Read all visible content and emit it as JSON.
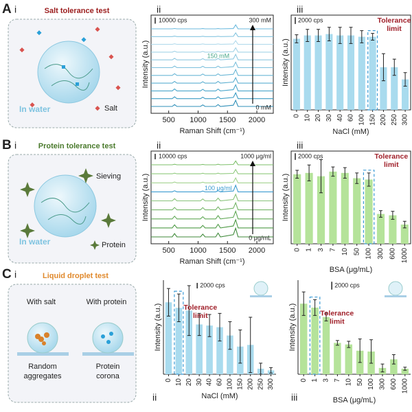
{
  "panels": [
    {
      "letter": "A",
      "numerals": [
        "i",
        "ii",
        "iii"
      ]
    },
    {
      "letter": "B",
      "numerals": [
        "i",
        "ii",
        "iii"
      ]
    },
    {
      "letter": "C",
      "numerals": [
        "i",
        "ii",
        "iii"
      ]
    }
  ],
  "illustrations": {
    "salt": {
      "title": "Salt tolerance test",
      "medium": "In water",
      "legend": "Salt"
    },
    "protein": {
      "title": "Protein tolerance test",
      "medium": "In water",
      "sieving": "Sieving",
      "legend": "Protein"
    },
    "droplet": {
      "title": "Liquid droplet test",
      "left": "With salt",
      "right": "With protein",
      "left_caption": [
        "Random",
        "aggregates"
      ],
      "right_caption": [
        "Protein",
        "corona"
      ]
    }
  },
  "chart_data": [
    {
      "type": "spectra",
      "xlabel": "Raman Shift (cm⁻¹)",
      "ylabel": "Intensity (a.u.)",
      "xlim": [
        200,
        2280
      ],
      "xticks": [
        500,
        1000,
        1500,
        2000
      ],
      "ylim": [
        0,
        160000
      ],
      "scale_bar": {
        "value": 10000,
        "label": "10000 cps"
      },
      "annotations": {
        "top": "300 mM",
        "middle": "150 mM",
        "bottom": "0 mM"
      },
      "annotation_color": "#4aa88a",
      "x": [
        200,
        560,
        600,
        640,
        1040,
        1080,
        1120,
        1300,
        1340,
        1380,
        1600,
        1640,
        1680,
        2280
      ],
      "series": [
        {
          "color": "#2f8fb8",
          "values": [
            0,
            0,
            3000,
            0,
            0,
            2500,
            0,
            0,
            3000,
            0,
            2000,
            10000,
            0,
            0
          ]
        },
        {
          "color": "#3b9cc4",
          "values": [
            0,
            0,
            3000,
            0,
            0,
            2500,
            0,
            0,
            3000,
            0,
            2000,
            9500,
            0,
            0
          ]
        },
        {
          "color": "#4aa6cb",
          "values": [
            0,
            0,
            3200,
            0,
            0,
            2600,
            0,
            0,
            3000,
            0,
            2000,
            10000,
            0,
            0
          ]
        },
        {
          "color": "#5aaed0",
          "values": [
            0,
            0,
            2800,
            0,
            0,
            2400,
            0,
            0,
            2800,
            0,
            1800,
            9000,
            0,
            0
          ]
        },
        {
          "color": "#6bb7d6",
          "values": [
            0,
            0,
            2800,
            0,
            0,
            2200,
            0,
            0,
            2600,
            0,
            1800,
            9500,
            0,
            0
          ]
        },
        {
          "color": "#7cc0dc",
          "values": [
            0,
            0,
            2600,
            0,
            0,
            2200,
            0,
            0,
            2500,
            0,
            1600,
            9000,
            0,
            0
          ]
        },
        {
          "color": "#8fc9e1",
          "values": [
            0,
            0,
            2600,
            0,
            0,
            2000,
            0,
            0,
            2400,
            0,
            1600,
            9000,
            0,
            0
          ]
        },
        {
          "color": "#a3d3e7",
          "values": [
            0,
            0,
            1500,
            0,
            0,
            1200,
            0,
            0,
            1200,
            0,
            800,
            7000,
            0,
            0
          ]
        },
        {
          "color": "#b3dbec",
          "values": [
            0,
            0,
            1000,
            0,
            0,
            800,
            0,
            0,
            800,
            0,
            600,
            6000,
            0,
            0
          ]
        },
        {
          "color": "#86c6e0",
          "values": [
            0,
            0,
            800,
            0,
            0,
            600,
            0,
            0,
            600,
            0,
            400,
            6000,
            0,
            0
          ]
        },
        {
          "color": "#6bbade",
          "values": [
            0,
            0,
            600,
            0,
            0,
            500,
            0,
            0,
            500,
            0,
            400,
            6500,
            0,
            0
          ]
        }
      ]
    },
    {
      "type": "bar",
      "xlabel": "NaCl (mM)",
      "ylabel": "Intensity (a.u.)",
      "categories": [
        "0",
        "10",
        "20",
        "30",
        "40",
        "60",
        "100",
        "150",
        "200",
        "250",
        "300"
      ],
      "values": [
        21000,
        22000,
        22000,
        22400,
        22000,
        22000,
        21600,
        21600,
        12600,
        12600,
        9000
      ],
      "errors": [
        1200,
        1800,
        1800,
        2000,
        2400,
        2400,
        1800,
        1000,
        4000,
        2400,
        2000
      ],
      "color": "#a9dbee",
      "ylim": [
        0,
        28000
      ],
      "scale_bar": {
        "value": 2000,
        "label": "2000 cps"
      },
      "highlight": "150",
      "highlight_label": [
        "Tolerance",
        "limit"
      ],
      "frame": "box"
    },
    {
      "type": "spectra",
      "xlabel": "Raman Shift (cm⁻¹)",
      "ylabel": "Intensity (a.u.)",
      "xlim": [
        200,
        2280
      ],
      "xticks": [
        500,
        1000,
        1500,
        2000
      ],
      "ylim": [
        0,
        170000
      ],
      "scale_bar": {
        "value": 10000,
        "label": "10000 cps"
      },
      "annotations": {
        "top": "1000 μg/ml",
        "middle": "100 μg/ml",
        "bottom": "0 μg/mL"
      },
      "annotation_color": "#3a9bd0",
      "x": [
        200,
        560,
        600,
        640,
        1040,
        1080,
        1120,
        1300,
        1340,
        1380,
        1600,
        1640,
        1680,
        2280
      ],
      "series": [
        {
          "color": "#3f8a3a",
          "values": [
            0,
            0,
            6000,
            0,
            0,
            5000,
            0,
            0,
            7000,
            0,
            4000,
            16000,
            0,
            0
          ]
        },
        {
          "color": "#4e9a45",
          "values": [
            0,
            0,
            5500,
            0,
            0,
            4500,
            0,
            0,
            6500,
            0,
            3500,
            15000,
            0,
            0
          ]
        },
        {
          "color": "#60a855",
          "values": [
            0,
            0,
            5000,
            0,
            0,
            4000,
            0,
            0,
            6000,
            0,
            3000,
            14000,
            0,
            0
          ]
        },
        {
          "color": "#74b567",
          "values": [
            0,
            0,
            4500,
            0,
            0,
            4000,
            0,
            0,
            5500,
            0,
            3000,
            13000,
            0,
            0
          ]
        },
        {
          "color": "#88c27a",
          "values": [
            0,
            0,
            4000,
            0,
            0,
            3500,
            0,
            0,
            5000,
            0,
            2500,
            12000,
            0,
            0
          ]
        },
        {
          "color": "#3a9bd0",
          "values": [
            0,
            0,
            2000,
            0,
            0,
            1500,
            0,
            0,
            2000,
            0,
            1500,
            12000,
            0,
            0
          ]
        },
        {
          "color": "#a3d38f",
          "values": [
            0,
            0,
            1500,
            0,
            0,
            1200,
            0,
            0,
            1500,
            0,
            1000,
            9000,
            0,
            0
          ]
        },
        {
          "color": "#8fc97c",
          "values": [
            0,
            0,
            1200,
            0,
            0,
            1000,
            0,
            0,
            1200,
            0,
            800,
            8000,
            0,
            0
          ]
        },
        {
          "color": "#7dbf6a",
          "values": [
            0,
            0,
            1000,
            0,
            0,
            800,
            0,
            0,
            1000,
            0,
            600,
            7000,
            0,
            0
          ]
        }
      ]
    },
    {
      "type": "bar",
      "xlabel": "BSA (μg/mL)",
      "ylabel": "Intensity (a.u.)",
      "categories": [
        "0",
        "1",
        "3",
        "7",
        "10",
        "50",
        "100",
        "300",
        "600",
        "1000"
      ],
      "values": [
        21000,
        21400,
        20400,
        21800,
        21400,
        19800,
        19400,
        9000,
        8600,
        5800
      ],
      "errors": [
        1200,
        2400,
        5000,
        1400,
        1600,
        1600,
        2000,
        1000,
        1200,
        1000
      ],
      "color": "#b5e39a",
      "ylim": [
        0,
        28000
      ],
      "scale_bar": {
        "value": 2000,
        "label": "2000 cps"
      },
      "highlight": "100",
      "highlight_label": [
        "Tolerance",
        "limit"
      ],
      "frame": "box"
    },
    {
      "type": "bar",
      "xlabel": "NaCl (mM)",
      "ylabel": "Intensity (a.u.)",
      "categories": [
        "0",
        "10",
        "20",
        "30",
        "40",
        "60",
        "100",
        "150",
        "200",
        "250",
        "300"
      ],
      "values": [
        26000,
        24000,
        23000,
        18000,
        17600,
        17000,
        14000,
        10000,
        10600,
        2000,
        1400
      ],
      "errors": [
        5000,
        5000,
        9000,
        4000,
        4000,
        5000,
        5000,
        6000,
        10000,
        2000,
        1000
      ],
      "color": "#a9dbee",
      "ylim": [
        0,
        34000
      ],
      "scale_bar": {
        "value": 2000,
        "label": "2000 cps"
      },
      "highlight": "10",
      "highlight_label": [
        "Tolerance",
        "limit"
      ],
      "frame": "axes"
    },
    {
      "type": "bar",
      "xlabel": "BSA (μg/mL)",
      "ylabel": "Intensity (a.u.)",
      "categories": [
        "0",
        "1",
        "3",
        "7",
        "10",
        "50",
        "100",
        "300",
        "600",
        "1000"
      ],
      "values": [
        18000,
        17000,
        14600,
        8000,
        7600,
        6000,
        5800,
        1600,
        3800,
        1400
      ],
      "errors": [
        3000,
        2000,
        1000,
        600,
        800,
        3000,
        3000,
        1000,
        1200,
        400
      ],
      "color": "#b5e39a",
      "ylim": [
        0,
        24000
      ],
      "scale_bar": {
        "value": 2000,
        "label": "2000 cps"
      },
      "highlight": "1",
      "highlight_label": [
        "Tolerance",
        "limit"
      ],
      "frame": "axes"
    }
  ]
}
